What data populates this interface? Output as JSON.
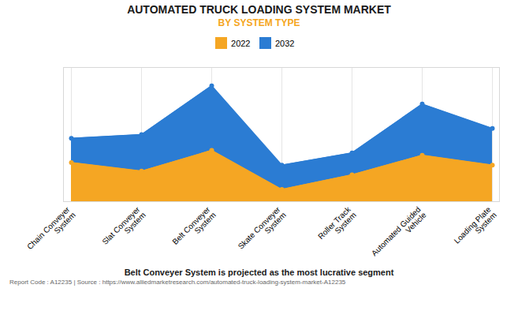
{
  "chart_data": {
    "type": "area",
    "title": "AUTOMATED TRUCK LOADING SYSTEM MARKET",
    "subtitle": "BY SYSTEM TYPE",
    "subtitle_color": "#F5A623",
    "categories": [
      "Chain Conveyer\nSystem",
      "Slat Conveyer\nSystem",
      "Belt Conveyer\nSystem",
      "Skate Conveyer\nSystem",
      "Roller Track\nSystem",
      "Automated Guided\nVehicle",
      "Loading Plate\nSystem"
    ],
    "series": [
      {
        "name": "2022",
        "color": "#F5A623",
        "values": [
          3.2,
          2.5,
          4.2,
          1.0,
          2.2,
          3.8,
          3.0
        ]
      },
      {
        "name": "2032",
        "color": "#2B7CD3",
        "values": [
          5.2,
          5.5,
          9.5,
          3.0,
          4.0,
          8.0,
          6.0
        ]
      }
    ],
    "ylim": [
      0,
      11
    ],
    "yticks": [],
    "grid": "x",
    "tick_labels": "x",
    "legend": "top",
    "marker": "circle",
    "annotations": [
      "Belt Conveyer System is projected as the most lucrative segment",
      "Report Code : A12235  |  Source : https://www.alliedmarketresearch.com/automated-truck-loading-system-market-A12235"
    ]
  }
}
